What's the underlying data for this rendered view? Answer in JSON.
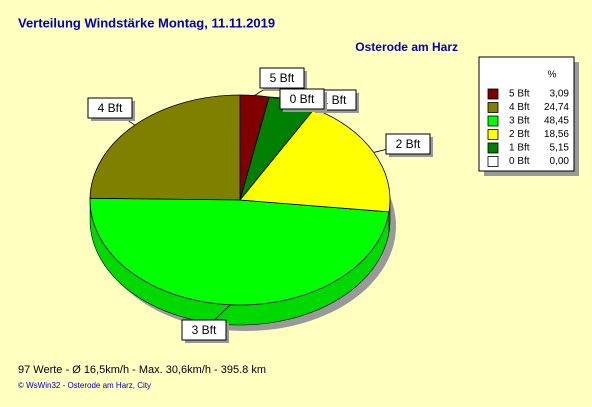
{
  "chart_data": {
    "type": "pie",
    "title": "Verteilung Windstärke  Montag, 11.11.2019",
    "subtitle": "Osterode am Harz",
    "legend_header": "%",
    "categories": [
      "5 Bft",
      "4 Bft",
      "3 Bft",
      "2 Bft",
      "1 Bft",
      "0 Bft"
    ],
    "values": [
      3.09,
      24.74,
      48.45,
      18.56,
      5.15,
      0.0
    ],
    "value_labels": [
      "3,09",
      "24,74",
      "48,45",
      "18,56",
      "5,15",
      "0,00"
    ],
    "colors": [
      "#800000",
      "#808000",
      "#00ff00",
      "#ffff00",
      "#008000",
      "#ffffff"
    ],
    "footer": "97 Werte   -   Ø 16,5km/h   -   Max. 30,6km/h   -   395.8 km",
    "credit": "© WsWin32  -  Osterode am Harz, City"
  }
}
